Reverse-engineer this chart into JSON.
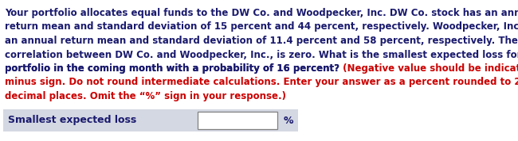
{
  "lines_black": [
    "Your portfolio allocates equal funds to the DW Co. and Woodpecker, Inc. DW Co. stock has an annual",
    "return mean and standard deviation of 15 percent and 44 percent, respectively. Woodpecker, Inc., stock has",
    "an annual return mean and standard deviation of 11.4 percent and 58 percent, respectively. The return",
    "correlation between DW Co. and Woodpecker, Inc., is zero. What is the smallest expected loss for your",
    "portfolio in the coming month with a probability of 16 percent?"
  ],
  "line5_black": "portfolio in the coming month with a probability of 16 percent?",
  "line5_red": " (Negative value should be indicated by a",
  "lines_red": [
    "minus sign. Do not round intermediate calculations. Enter your answer as a percent rounded to 2",
    "decimal places. Omit the “%” sign in your response.)"
  ],
  "row_label": "Smallest expected loss",
  "row_unit": "%",
  "bg_color": "#ffffff",
  "text_color_black": "#1a1a6e",
  "text_color_red": "#cc0000",
  "row_bg": "#d4d8e2",
  "input_bg": "#ffffff",
  "input_border": "#808080",
  "font_size": 8.5,
  "font_size_row": 9.0
}
